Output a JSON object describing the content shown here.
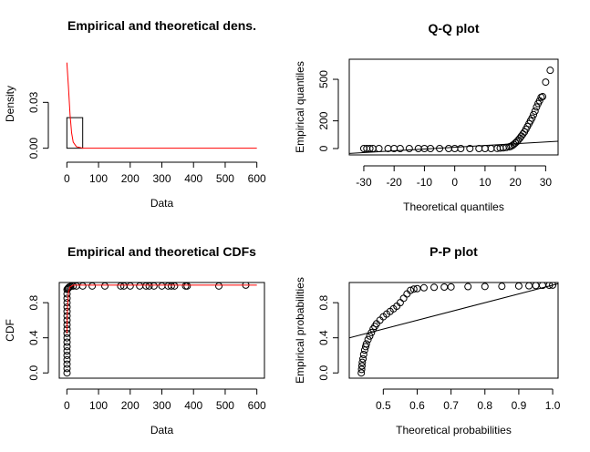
{
  "chart_data": [
    {
      "type": "histogram",
      "title": "Empirical and theoretical dens.",
      "xlabel": "Data",
      "ylabel": "Density",
      "xlim": [
        -24,
        624
      ],
      "ylim": [
        -0.002,
        0.06
      ],
      "xticks": [
        0,
        100,
        200,
        300,
        400,
        500,
        600
      ],
      "yticks": [
        {
          "value": 0,
          "label": "0.00"
        },
        {
          "value": 0.03,
          "label": "0.03"
        }
      ],
      "box": false,
      "bins": [
        0,
        50,
        100,
        150,
        200,
        250,
        300,
        350,
        400,
        450,
        500,
        550,
        600
      ],
      "values": [
        0.02,
        0,
        0,
        0,
        0,
        0,
        0,
        0,
        0,
        0,
        0,
        0
      ],
      "bar_color": "black",
      "series": [
        {
          "style": "line",
          "color": "red",
          "x": [
            0,
            5,
            10,
            15,
            20,
            30,
            50,
            600
          ],
          "y": [
            0.056,
            0.04,
            0.022,
            0.01,
            0.004,
            0.001,
            0,
            0
          ]
        }
      ]
    },
    {
      "type": "scatter",
      "title": "Q-Q plot",
      "xlabel": "Theoretical quantiles",
      "ylabel": "Empirical quantiles",
      "xlim": [
        -34.8,
        34.1
      ],
      "ylim": [
        -46,
        645
      ],
      "xticks": [
        -30,
        -20,
        -10,
        0,
        10,
        20,
        30
      ],
      "yticks": [
        0,
        200,
        500
      ],
      "box": true,
      "series": [
        {
          "style": "points",
          "color": "black",
          "x": [
            -30,
            -29,
            -28,
            -27,
            -25,
            -22,
            -20,
            -18,
            -15,
            -12,
            -10,
            -8,
            -5,
            -2,
            0,
            2,
            5,
            8,
            10,
            12,
            14,
            15,
            16,
            17,
            18,
            18.5,
            19,
            19.5,
            20,
            20.5,
            21,
            21.5,
            22,
            22.5,
            23,
            23.5,
            24,
            24.5,
            25,
            25.5,
            26,
            26.5,
            27,
            27.5,
            28,
            28.5,
            29,
            30,
            31.5
          ],
          "y": [
            0,
            0,
            0,
            0,
            0,
            0,
            0,
            0,
            0,
            0,
            0,
            0,
            0,
            0,
            0,
            0,
            0,
            0,
            0,
            0,
            1,
            3,
            5,
            8,
            12,
            16,
            22,
            30,
            40,
            50,
            62,
            75,
            90,
            105,
            120,
            140,
            160,
            180,
            200,
            220,
            245,
            270,
            300,
            325,
            345,
            370,
            375,
            480,
            565
          ]
        },
        {
          "style": "line",
          "color": "black",
          "x": [
            -34.8,
            34.1
          ],
          "y": [
            -35,
            53
          ]
        }
      ]
    },
    {
      "type": "scatter",
      "title": "Empirical and theoretical CDFs",
      "xlabel": "Data",
      "ylabel": "CDF",
      "xlim": [
        -24,
        624
      ],
      "ylim": [
        -0.06,
        1.03
      ],
      "xticks": [
        0,
        100,
        200,
        300,
        400,
        500,
        600
      ],
      "yticks": [
        {
          "value": 0,
          "label": "0.0"
        },
        0.4,
        0.8
      ],
      "box": true,
      "series": [
        {
          "style": "points",
          "color": "black",
          "x": [
            0.5,
            0.5,
            0.5,
            0.5,
            0.5,
            0.5,
            0.5,
            0.5,
            0.5,
            0.5,
            0.5,
            0.5,
            0.5,
            0.5,
            0.5,
            0.5,
            0.5,
            0.5,
            0.5,
            0.5,
            3,
            5,
            8,
            12,
            20,
            30,
            50,
            80,
            120,
            170,
            180,
            200,
            230,
            250,
            260,
            275,
            300,
            320,
            330,
            340,
            375,
            380,
            480,
            565
          ],
          "y": [
            0,
            0.05,
            0.1,
            0.15,
            0.2,
            0.25,
            0.3,
            0.35,
            0.4,
            0.45,
            0.5,
            0.55,
            0.6,
            0.65,
            0.7,
            0.75,
            0.8,
            0.85,
            0.9,
            0.95,
            0.96,
            0.97,
            0.98,
            0.985,
            0.99,
            0.99,
            0.99,
            0.99,
            0.99,
            0.99,
            0.99,
            0.99,
            0.99,
            0.99,
            0.99,
            0.99,
            0.99,
            0.99,
            0.99,
            0.99,
            0.99,
            0.99,
            0.99,
            1
          ]
        },
        {
          "style": "line",
          "color": "red",
          "x": [
            0,
            2,
            5,
            10,
            20,
            600
          ],
          "y": [
            0.45,
            0.75,
            0.92,
            0.98,
            1,
            1
          ]
        }
      ]
    },
    {
      "type": "scatter",
      "title": "P-P plot",
      "xlabel": "Theoretical probabilities",
      "ylabel": "Empirical probabilities",
      "xlim": [
        0.3995,
        1.016
      ],
      "ylim": [
        -0.06,
        1.03
      ],
      "xticks": [
        0.5,
        0.6,
        0.7,
        0.8,
        0.9,
        {
          "value": 1,
          "label": "1.0"
        }
      ],
      "yticks": [
        {
          "value": 0,
          "label": "0.0"
        },
        0.4,
        0.8
      ],
      "box": true,
      "series": [
        {
          "style": "points",
          "color": "black",
          "x": [
            0.435,
            0.436,
            0.437,
            0.438,
            0.44,
            0.442,
            0.445,
            0.448,
            0.45,
            0.455,
            0.46,
            0.465,
            0.47,
            0.475,
            0.48,
            0.49,
            0.5,
            0.51,
            0.52,
            0.53,
            0.54,
            0.55,
            0.56,
            0.57,
            0.58,
            0.59,
            0.6,
            0.62,
            0.65,
            0.68,
            0.7,
            0.75,
            0.8,
            0.85,
            0.9,
            0.93,
            0.95,
            0.97,
            0.99,
            1
          ],
          "y": [
            0,
            0.04,
            0.08,
            0.12,
            0.16,
            0.21,
            0.26,
            0.3,
            0.33,
            0.38,
            0.42,
            0.46,
            0.5,
            0.53,
            0.56,
            0.6,
            0.64,
            0.67,
            0.7,
            0.73,
            0.76,
            0.8,
            0.85,
            0.9,
            0.94,
            0.955,
            0.96,
            0.97,
            0.975,
            0.978,
            0.98,
            0.983,
            0.985,
            0.987,
            0.99,
            0.992,
            0.995,
            0.997,
            0.999,
            1
          ]
        },
        {
          "style": "line",
          "color": "black",
          "x": [
            0.3995,
            1.016
          ],
          "y": [
            0.3995,
            1.016
          ]
        }
      ]
    }
  ]
}
